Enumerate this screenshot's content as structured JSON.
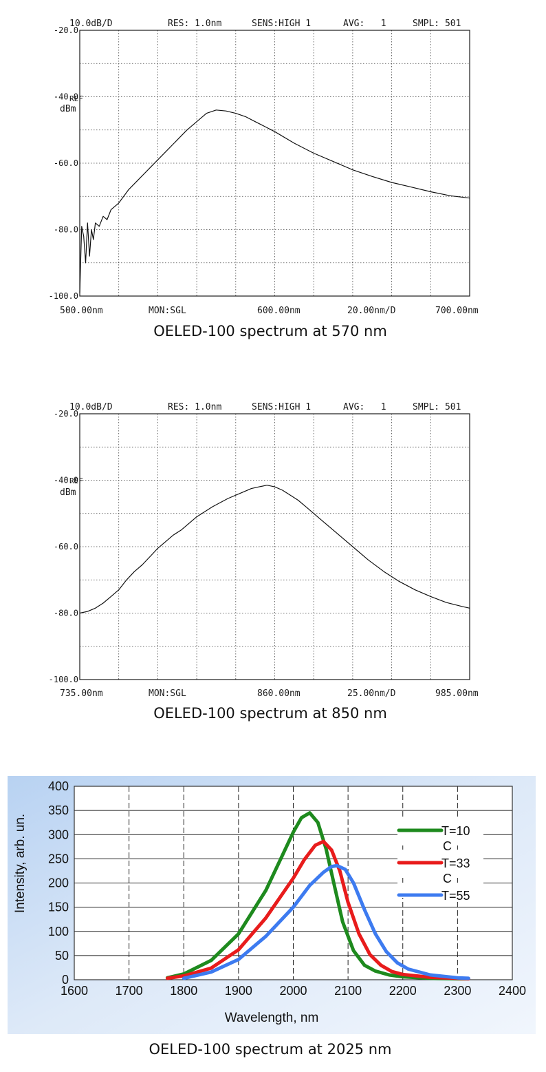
{
  "chart_data": [
    {
      "type": "line",
      "caption": "OELED-100 spectrum at 570 nm",
      "header": {
        "scale": "10.0dB/D",
        "res": "RES: 1.0nm",
        "sens": "SENS:HIGH 1",
        "avg": "AVG:   1",
        "smpl": "SMPL: 501"
      },
      "footer": {
        "start": "500.00nm",
        "mon": "MON:SGL",
        "center": "600.00nm",
        "span": "20.00nm/D",
        "stop": "700.00nm"
      },
      "y_ticks": [
        {
          "value": -20,
          "label": "-20.0"
        },
        {
          "value": -40,
          "label": "-40.0"
        },
        {
          "value": -60,
          "label": "-60.0"
        },
        {
          "value": -80,
          "label": "-80.0"
        },
        {
          "value": -100,
          "label": "-100.0"
        }
      ],
      "ref_label": "REF",
      "unit_label": "dBm",
      "xlim": [
        500,
        700
      ],
      "ylim": [
        -100,
        -20
      ],
      "grid": true,
      "series": [
        {
          "x": [
            500,
            501,
            502,
            503,
            504,
            505,
            506,
            507,
            508,
            510,
            512,
            514,
            516,
            520,
            525,
            530,
            535,
            540,
            545,
            550,
            555,
            560,
            565,
            570,
            575,
            580,
            585,
            590,
            595,
            600,
            610,
            620,
            630,
            640,
            650,
            660,
            670,
            680,
            690,
            700
          ],
          "y": [
            -99,
            -79,
            -82,
            -90,
            -78,
            -88,
            -80,
            -83,
            -78,
            -79,
            -76,
            -77,
            -74,
            -72,
            -68,
            -65,
            -62,
            -59,
            -56,
            -53,
            -50,
            -47.5,
            -45,
            -44,
            -44.3,
            -45,
            -46,
            -47.5,
            -49,
            -50.5,
            -54,
            -57,
            -59.5,
            -62,
            -64,
            -65.8,
            -67.2,
            -68.6,
            -69.8,
            -70.5
          ]
        }
      ]
    },
    {
      "type": "line",
      "caption": "OELED-100 spectrum at 850 nm",
      "header": {
        "scale": "10.0dB/D",
        "res": "RES: 1.0nm",
        "sens": "SENS:HIGH 1",
        "avg": "AVG:   1",
        "smpl": "SMPL: 501"
      },
      "footer": {
        "start": "735.00nm",
        "mon": "MON:SGL",
        "center": "860.00nm",
        "span": "25.00nm/D",
        "stop": "985.00nm"
      },
      "y_ticks": [
        {
          "value": -20,
          "label": "-20.0"
        },
        {
          "value": -40,
          "label": "-40.0"
        },
        {
          "value": -60,
          "label": "-60.0"
        },
        {
          "value": -80,
          "label": "-80.0"
        },
        {
          "value": -100,
          "label": "-100.0"
        }
      ],
      "ref_label": "REF",
      "unit_label": "dBm",
      "xlim": [
        735,
        985
      ],
      "ylim": [
        -100,
        -20
      ],
      "grid": true,
      "series": [
        {
          "x": [
            735,
            740,
            745,
            750,
            755,
            760,
            765,
            770,
            775,
            780,
            785,
            790,
            795,
            800,
            810,
            820,
            830,
            840,
            845,
            850,
            855,
            860,
            865,
            870,
            875,
            880,
            890,
            900,
            910,
            920,
            930,
            940,
            950,
            960,
            970,
            980,
            985
          ],
          "y": [
            -80,
            -79.5,
            -78.5,
            -77,
            -75,
            -73,
            -70,
            -67.5,
            -65.5,
            -63,
            -60.5,
            -58.5,
            -56.5,
            -55,
            -51,
            -48,
            -45.5,
            -43.5,
            -42.5,
            -42,
            -41.5,
            -42,
            -43,
            -44.5,
            -46,
            -48,
            -52,
            -56,
            -60,
            -64,
            -67.5,
            -70.5,
            -73,
            -75,
            -76.8,
            -78,
            -78.5
          ]
        }
      ]
    },
    {
      "type": "line",
      "caption": "OELED-100 spectrum at 2025 nm",
      "xlabel": "Wavelength, nm",
      "ylabel": "Intensity, arb. un.",
      "xlim": [
        1600,
        2400
      ],
      "ylim": [
        0,
        400
      ],
      "x_ticks": [
        "1600",
        "1700",
        "1800",
        "1900",
        "2000",
        "2100",
        "2200",
        "2300",
        "2400"
      ],
      "y_ticks": [
        "0",
        "50",
        "100",
        "150",
        "200",
        "250",
        "300",
        "350",
        "400"
      ],
      "grid": true,
      "legend_position": "right",
      "series": [
        {
          "name": "T=10 C",
          "legend_lines": [
            "T=10",
            "C"
          ],
          "color": "#1e8a1e",
          "x": [
            1770,
            1800,
            1850,
            1900,
            1950,
            1975,
            2000,
            2015,
            2030,
            2045,
            2060,
            2075,
            2090,
            2110,
            2130,
            2150,
            2175,
            2200,
            2250,
            2300,
            2320
          ],
          "y": [
            4,
            12,
            40,
            95,
            185,
            245,
            305,
            335,
            345,
            325,
            270,
            195,
            120,
            60,
            30,
            18,
            10,
            6,
            3,
            2,
            2
          ]
        },
        {
          "name": "T=33 C",
          "legend_lines": [
            "T=33",
            "C"
          ],
          "color": "#e81c1c",
          "x": [
            1770,
            1800,
            1850,
            1900,
            1950,
            2000,
            2020,
            2040,
            2055,
            2070,
            2085,
            2100,
            2120,
            2140,
            2160,
            2180,
            2200,
            2250,
            2300,
            2320
          ],
          "y": [
            3,
            8,
            24,
            62,
            128,
            210,
            248,
            278,
            286,
            268,
            225,
            160,
            95,
            52,
            30,
            17,
            11,
            5,
            3,
            2
          ]
        },
        {
          "name": "T=55",
          "legend_lines": [
            "T=55"
          ],
          "color": "#3d7bf0",
          "x": [
            1800,
            1850,
            1900,
            1950,
            2000,
            2030,
            2055,
            2070,
            2080,
            2095,
            2110,
            2130,
            2150,
            2170,
            2190,
            2210,
            2250,
            2300,
            2320
          ],
          "y": [
            3,
            16,
            42,
            90,
            150,
            195,
            222,
            234,
            236,
            228,
            200,
            145,
            95,
            58,
            35,
            22,
            10,
            4,
            3
          ]
        }
      ]
    }
  ]
}
